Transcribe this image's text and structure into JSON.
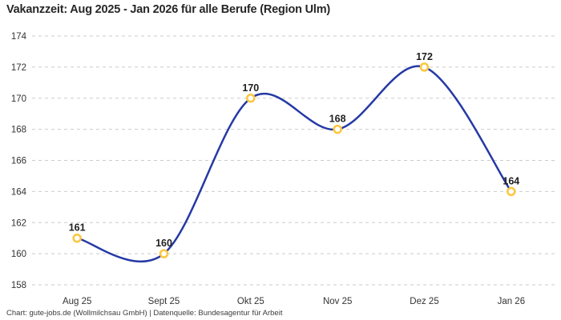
{
  "title": "Vakanzzeit: Aug 2025 - Jan 2026 für alle Berufe (Region Ulm)",
  "footer": "Chart: gute-jobs.de (Wollmilchsau GmbH) | Datenquelle: Bundesagentur für Arbeit",
  "colors": {
    "line": "#2539a5",
    "marker_stroke": "#fcc63e",
    "marker_fill": "#ffffff",
    "grid": "#cbcbcb",
    "tick_text": "#333333",
    "point_label_text": "#1f1f1f",
    "background": "#ffffff"
  },
  "chart_data": {
    "type": "line",
    "categories": [
      "Aug 25",
      "Sept 25",
      "Okt 25",
      "Nov 25",
      "Dez 25",
      "Jan 26"
    ],
    "values": [
      161,
      160,
      170,
      168,
      172,
      164
    ],
    "series": [
      {
        "name": "Vakanzzeit",
        "values": [
          161,
          160,
          170,
          168,
          172,
          164
        ]
      }
    ],
    "title": "Vakanzzeit: Aug 2025 - Jan 2026 für alle Berufe (Region Ulm)",
    "xlabel": "",
    "ylabel": "",
    "ylim": [
      158,
      174
    ],
    "yticks": [
      158,
      160,
      162,
      164,
      166,
      168,
      170,
      172,
      174
    ],
    "grid": true,
    "grid_style": "dashed",
    "curve": "smooth",
    "markers": "open-circle",
    "data_labels": true,
    "legend": false
  }
}
